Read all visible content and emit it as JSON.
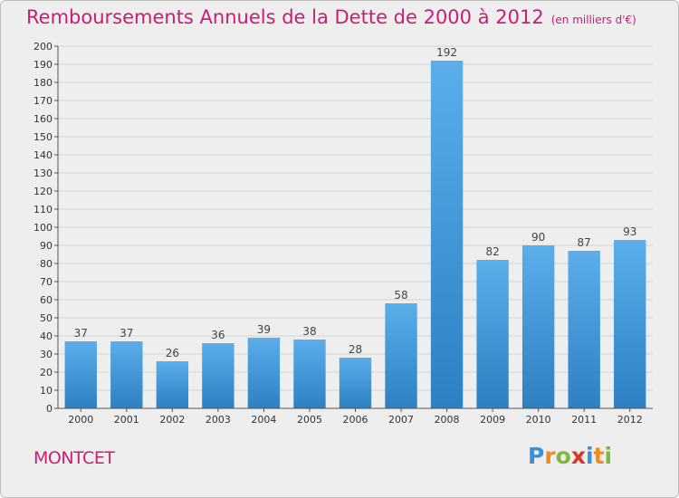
{
  "title": "Remboursements Annuels de la Dette de 2000 à 2012",
  "subtitle": "(en milliers d'€)",
  "town": "MONTCET",
  "logo": [
    "P",
    "r",
    "o",
    "x",
    "i",
    "t",
    "i"
  ],
  "colors": {
    "title": "#c8206f",
    "bar_light": "#5aaeea",
    "bar_dark": "#2d80c2",
    "logo": [
      "#3a8fd6",
      "#f08c1e",
      "#7fba3a",
      "#e0342b",
      "#3a8fd6",
      "#f08c1e",
      "#7fba3a"
    ]
  },
  "chart_data": {
    "type": "bar",
    "categories": [
      "2000",
      "2001",
      "2002",
      "2003",
      "2004",
      "2005",
      "2006",
      "2007",
      "2008",
      "2009",
      "2010",
      "2011",
      "2012"
    ],
    "values": [
      37,
      37,
      26,
      36,
      39,
      38,
      28,
      58,
      192,
      82,
      90,
      87,
      93
    ],
    "ylim": [
      0,
      200
    ],
    "ytick_step": 10,
    "grid": true,
    "data_labels": true
  }
}
